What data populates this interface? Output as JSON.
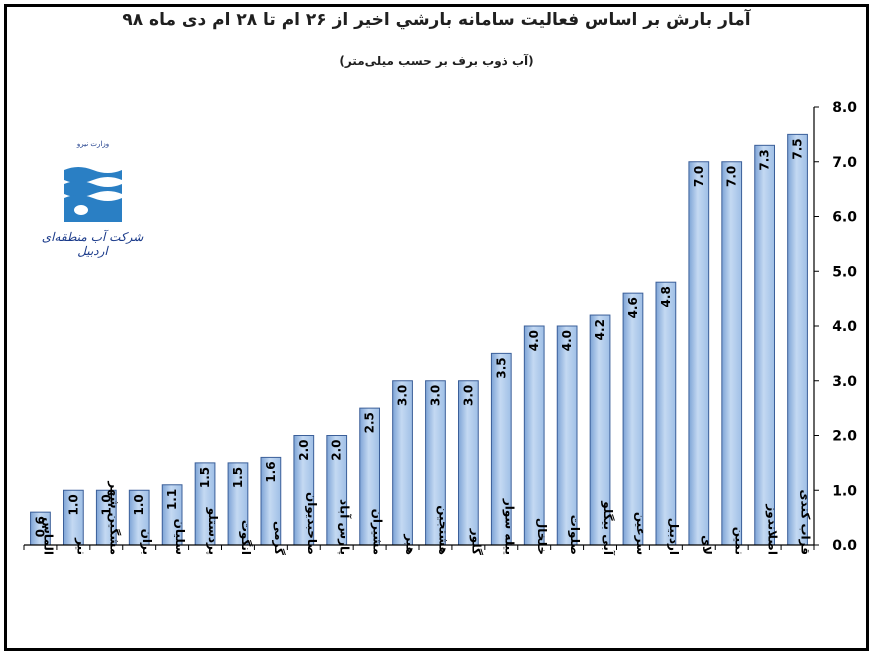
{
  "title": "آمار بارش بر اساس فعالیت سامانه بارشي اخیر از ۲۶ ام تا ۲۸ ام دی ماه ۹۸",
  "subtitle": "(آب ذوب برف بر حسب میلی‌متر)",
  "logo": {
    "text": "شرکت آب منطقه‌ای اردبیل",
    "small_text": "وزارت نیرو",
    "icon": "water-company-logo"
  },
  "colors": {
    "bar_fill": "#9fbfe6",
    "bar_stroke": "#3b5f99",
    "axis": "#000000"
  },
  "chart_data": {
    "type": "bar",
    "title": "آمار بارش بر اساس فعالیت سامانه بارشي اخیر از ۲۶ ام تا ۲۸ ام دی ماه ۹۸",
    "subtitle": "(آب ذوب برف بر حسب میلی‌متر)",
    "xlabel": "",
    "ylabel": "",
    "ylim": [
      0,
      8
    ],
    "yticks": [
      "0.0",
      "1.0",
      "2.0",
      "3.0",
      "4.0",
      "5.0",
      "6.0",
      "7.0",
      "8.0"
    ],
    "y_axis_position": "right",
    "grid": false,
    "categories": [
      "الماس",
      "نیر",
      "مشگین شهر",
      "بران",
      "سلیان",
      "پردستلو",
      "انگوت",
      "گرمی",
      "صاحبدیوان",
      "پارس آباد",
      "مشیران",
      "هیر",
      "هشتجین",
      "گلور",
      "ییله سوار",
      "خلخال",
      "صلوات",
      "آبی بیگلو",
      "سرعین",
      "اردبیل",
      "لای",
      "نمین",
      "اصلاندوز",
      "قراب کندی"
    ],
    "values": [
      0.6,
      1.0,
      1.0,
      1.0,
      1.1,
      1.5,
      1.5,
      1.6,
      2.0,
      2.0,
      2.5,
      3.0,
      3.0,
      3.0,
      3.5,
      4.0,
      4.0,
      4.2,
      4.6,
      4.8,
      7.0,
      7.0,
      7.3,
      7.5
    ],
    "value_labels": [
      "0.6",
      "1.0",
      "1.0",
      "1.0",
      "1.1",
      "1.5",
      "1.5",
      "1.6",
      "2.0",
      "2.0",
      "2.5",
      "3.0",
      "3.0",
      "3.0",
      "3.5",
      "4.0",
      "4.0",
      "4.2",
      "4.6",
      "4.8",
      "7.0",
      "7.0",
      "7.3",
      "7.5"
    ]
  }
}
